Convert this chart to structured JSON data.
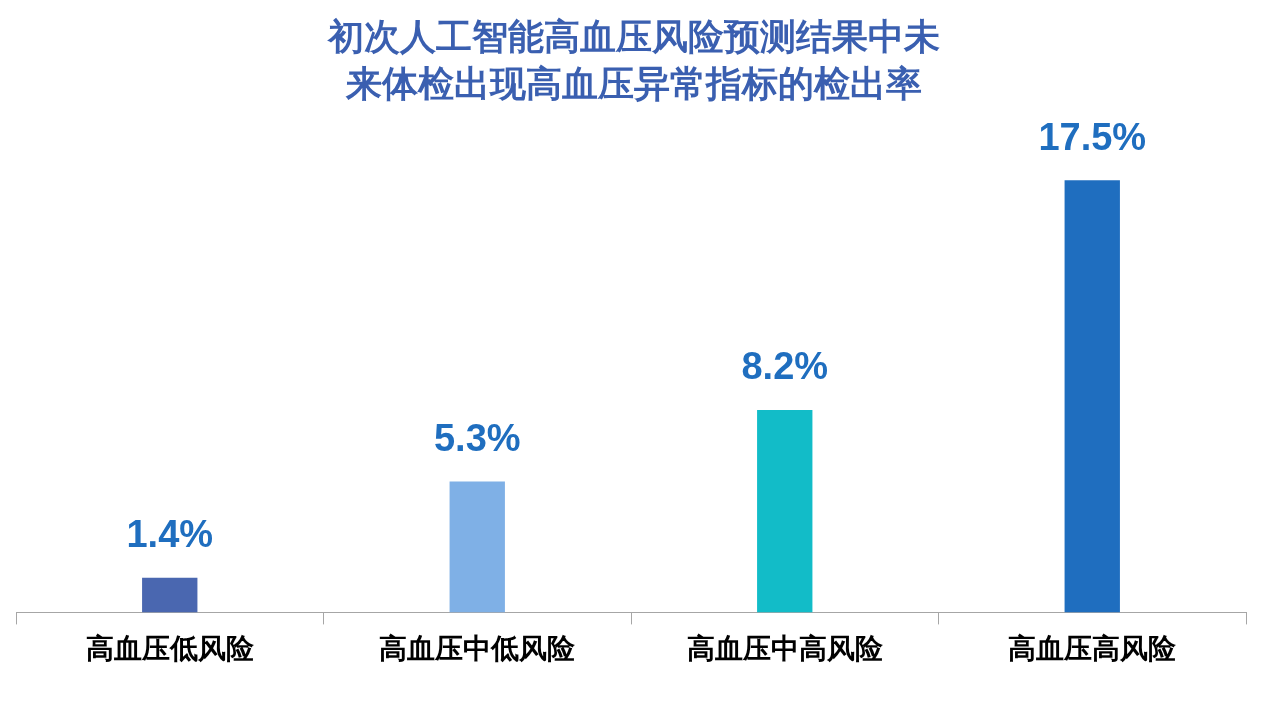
{
  "chart_data": {
    "type": "bar",
    "title": "初次人工智能高血压风险预测结果中未来体检出现高血压异常指标的检出率",
    "categories": [
      "高血压低风险",
      "高血压中低风险",
      "高血压中高风险",
      "高血压高风险"
    ],
    "values": [
      1.4,
      5.3,
      8.2,
      17.5
    ],
    "colors": [
      "#4a67b0",
      "#7fb0e6",
      "#12bcc8",
      "#1f6ebf"
    ],
    "value_labels": [
      "1.4%",
      "5.3%",
      "8.2%",
      "17.5%"
    ],
    "legend": false
  }
}
